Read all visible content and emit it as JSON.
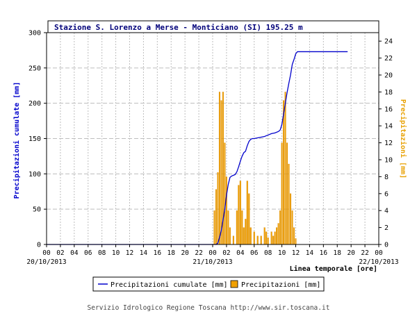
{
  "title": "Stazione S. Lorenzo a Merse - Monticiano (SI) 195.25 m",
  "footer": "Servizio Idrologico Regione Toscana http://www.sir.toscana.it",
  "colors": {
    "cumulative": "#0000cc",
    "bars": "#f0a000",
    "bars_outline": "#d08000",
    "left_axis_label": "#0000cc",
    "right_axis_label": "#e8a000",
    "grid": "#bdbdbd"
  },
  "chart_data": {
    "type": "bar",
    "title": "Stazione S. Lorenzo a Merse - Monticiano (SI) 195.25 m",
    "xlabel": "Linea temporale [ore]",
    "ylabel_left": "Precipitazioni cumulate [mm]",
    "ylabel_right": "Precipitazioni [mm]",
    "x_range_hours": [
      0,
      48
    ],
    "x_tick_labels": [
      "00",
      "02",
      "04",
      "06",
      "08",
      "10",
      "12",
      "14",
      "16",
      "18",
      "20",
      "22",
      "00",
      "02",
      "04",
      "06",
      "08",
      "10",
      "12",
      "14",
      "16",
      "18",
      "20",
      "22",
      "00"
    ],
    "date_labels": [
      {
        "hour": 0,
        "label": "20/10/2013"
      },
      {
        "hour": 24,
        "label": "21/10/2013"
      },
      {
        "hour": 48,
        "label": "22/10/2013"
      }
    ],
    "ylim_left": [
      0,
      300
    ],
    "y_ticks_left": [
      0,
      50,
      100,
      150,
      200,
      250,
      300
    ],
    "ylim_right": [
      0,
      25
    ],
    "y_ticks_right": [
      0,
      2,
      4,
      6,
      8,
      10,
      12,
      14,
      16,
      18,
      20,
      22,
      24
    ],
    "grid": true,
    "legend_position": "bottom",
    "series": [
      {
        "name": "Precipitazioni cumulate [mm]",
        "type": "line",
        "axis": "left",
        "points": [
          [
            0,
            0
          ],
          [
            24.5,
            0
          ],
          [
            24.75,
            2
          ],
          [
            25,
            10
          ],
          [
            25.25,
            20
          ],
          [
            25.5,
            35
          ],
          [
            25.75,
            50
          ],
          [
            26,
            70
          ],
          [
            26.25,
            85
          ],
          [
            26.5,
            95
          ],
          [
            26.75,
            97
          ],
          [
            27,
            98
          ],
          [
            27.25,
            99
          ],
          [
            27.5,
            103
          ],
          [
            27.75,
            110
          ],
          [
            28,
            118
          ],
          [
            28.25,
            125
          ],
          [
            28.5,
            130
          ],
          [
            28.75,
            132
          ],
          [
            29,
            140
          ],
          [
            29.25,
            146
          ],
          [
            29.5,
            149
          ],
          [
            29.75,
            150
          ],
          [
            30,
            150
          ],
          [
            30.5,
            151
          ],
          [
            31,
            152
          ],
          [
            31.5,
            153
          ],
          [
            32,
            155
          ],
          [
            32.5,
            157
          ],
          [
            33,
            158
          ],
          [
            33.5,
            160
          ],
          [
            33.75,
            162
          ],
          [
            34,
            170
          ],
          [
            34.25,
            185
          ],
          [
            34.5,
            200
          ],
          [
            34.75,
            215
          ],
          [
            35,
            228
          ],
          [
            35.25,
            240
          ],
          [
            35.5,
            255
          ],
          [
            35.75,
            262
          ],
          [
            36,
            270
          ],
          [
            36.25,
            273
          ],
          [
            38,
            273
          ],
          [
            40,
            273
          ],
          [
            42,
            273
          ],
          [
            43.5,
            273
          ]
        ]
      },
      {
        "name": "Precipitazioni [mm]",
        "type": "bar",
        "axis": "right",
        "points": [
          [
            24.25,
            4
          ],
          [
            24.5,
            6.5
          ],
          [
            24.75,
            8.5
          ],
          [
            25,
            18
          ],
          [
            25.25,
            17
          ],
          [
            25.5,
            18
          ],
          [
            25.75,
            12
          ],
          [
            26,
            8
          ],
          [
            26.25,
            4
          ],
          [
            26.5,
            2
          ],
          [
            27,
            1
          ],
          [
            27.5,
            4
          ],
          [
            27.75,
            7
          ],
          [
            28,
            7.5
          ],
          [
            28.25,
            4
          ],
          [
            28.5,
            2
          ],
          [
            28.75,
            3
          ],
          [
            29,
            7.5
          ],
          [
            29.25,
            6
          ],
          [
            29.5,
            2
          ],
          [
            30,
            1.5
          ],
          [
            30.5,
            1
          ],
          [
            31,
            1
          ],
          [
            31.5,
            2
          ],
          [
            31.75,
            1.5
          ],
          [
            32,
            0.8
          ],
          [
            32.5,
            1.5
          ],
          [
            32.75,
            1
          ],
          [
            33,
            1.5
          ],
          [
            33.25,
            2
          ],
          [
            33.5,
            2.5
          ],
          [
            33.75,
            4
          ],
          [
            34,
            12
          ],
          [
            34.25,
            17
          ],
          [
            34.5,
            18
          ],
          [
            34.75,
            12
          ],
          [
            35,
            9.5
          ],
          [
            35.25,
            6
          ],
          [
            35.5,
            4
          ],
          [
            35.75,
            2
          ],
          [
            36,
            0.7
          ]
        ]
      }
    ]
  }
}
